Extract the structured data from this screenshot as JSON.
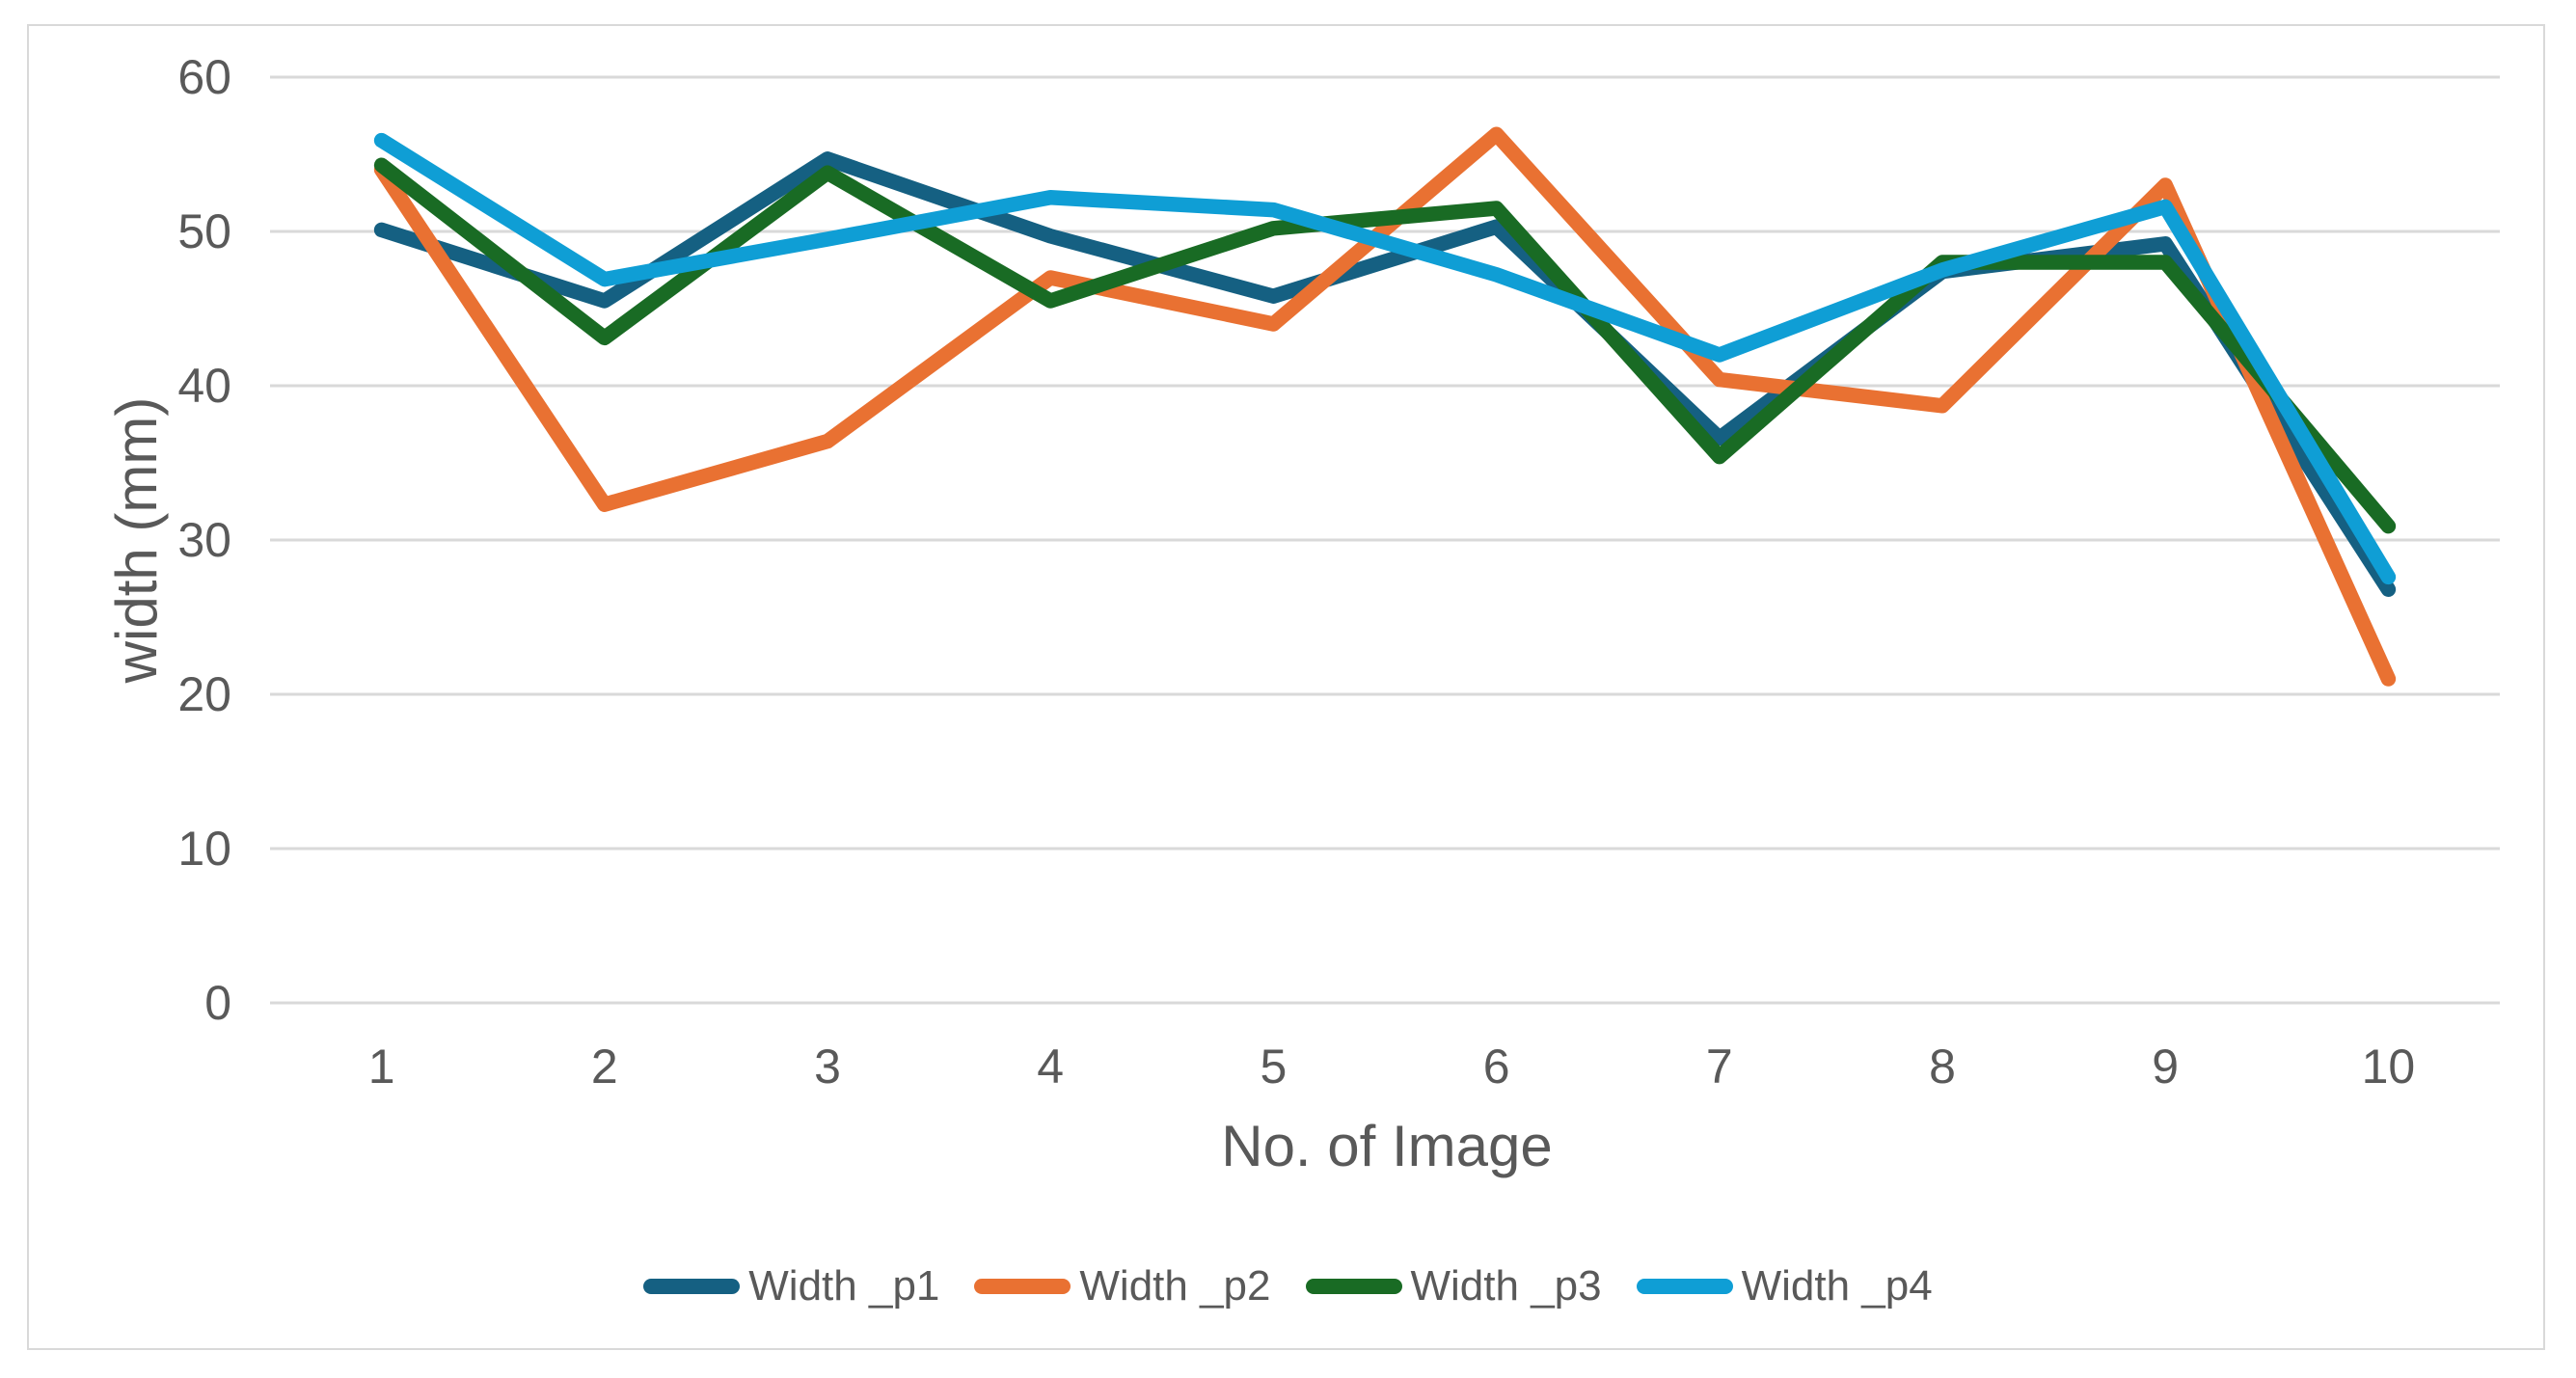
{
  "chart_data": {
    "type": "line",
    "title": "",
    "xlabel": "No. of Image",
    "ylabel": "width (mm)",
    "categories": [
      "1",
      "2",
      "3",
      "4",
      "5",
      "6",
      "7",
      "8",
      "9",
      "10"
    ],
    "ylim": [
      0,
      60
    ],
    "yticks": [
      0,
      10,
      20,
      30,
      40,
      50,
      60
    ],
    "grid": "horizontal",
    "legend_position": "bottom",
    "series": [
      {
        "name": "Width _p1",
        "color": "#156082",
        "values": [
          50.1,
          45.5,
          54.7,
          49.7,
          45.8,
          50.3,
          36.6,
          47.4,
          49.2,
          26.8
        ]
      },
      {
        "name": "Width _p2",
        "color": "#E97132",
        "values": [
          54.0,
          32.3,
          36.4,
          47.0,
          44.0,
          56.3,
          40.4,
          38.7,
          53.0,
          21.0
        ]
      },
      {
        "name": "Width _p3",
        "color": "#196B24",
        "values": [
          54.3,
          43.1,
          53.8,
          45.5,
          50.2,
          51.5,
          35.4,
          48.0,
          48.0,
          30.9
        ]
      },
      {
        "name": "Width _p4",
        "color": "#0F9ED5",
        "values": [
          55.9,
          46.9,
          49.5,
          52.2,
          51.4,
          47.2,
          42.0,
          47.5,
          51.6,
          27.6
        ]
      }
    ]
  },
  "colors": {
    "background": "#FFFFFF",
    "border": "#D9D9D9",
    "gridline": "#D9D9D9",
    "text": "#595959"
  }
}
